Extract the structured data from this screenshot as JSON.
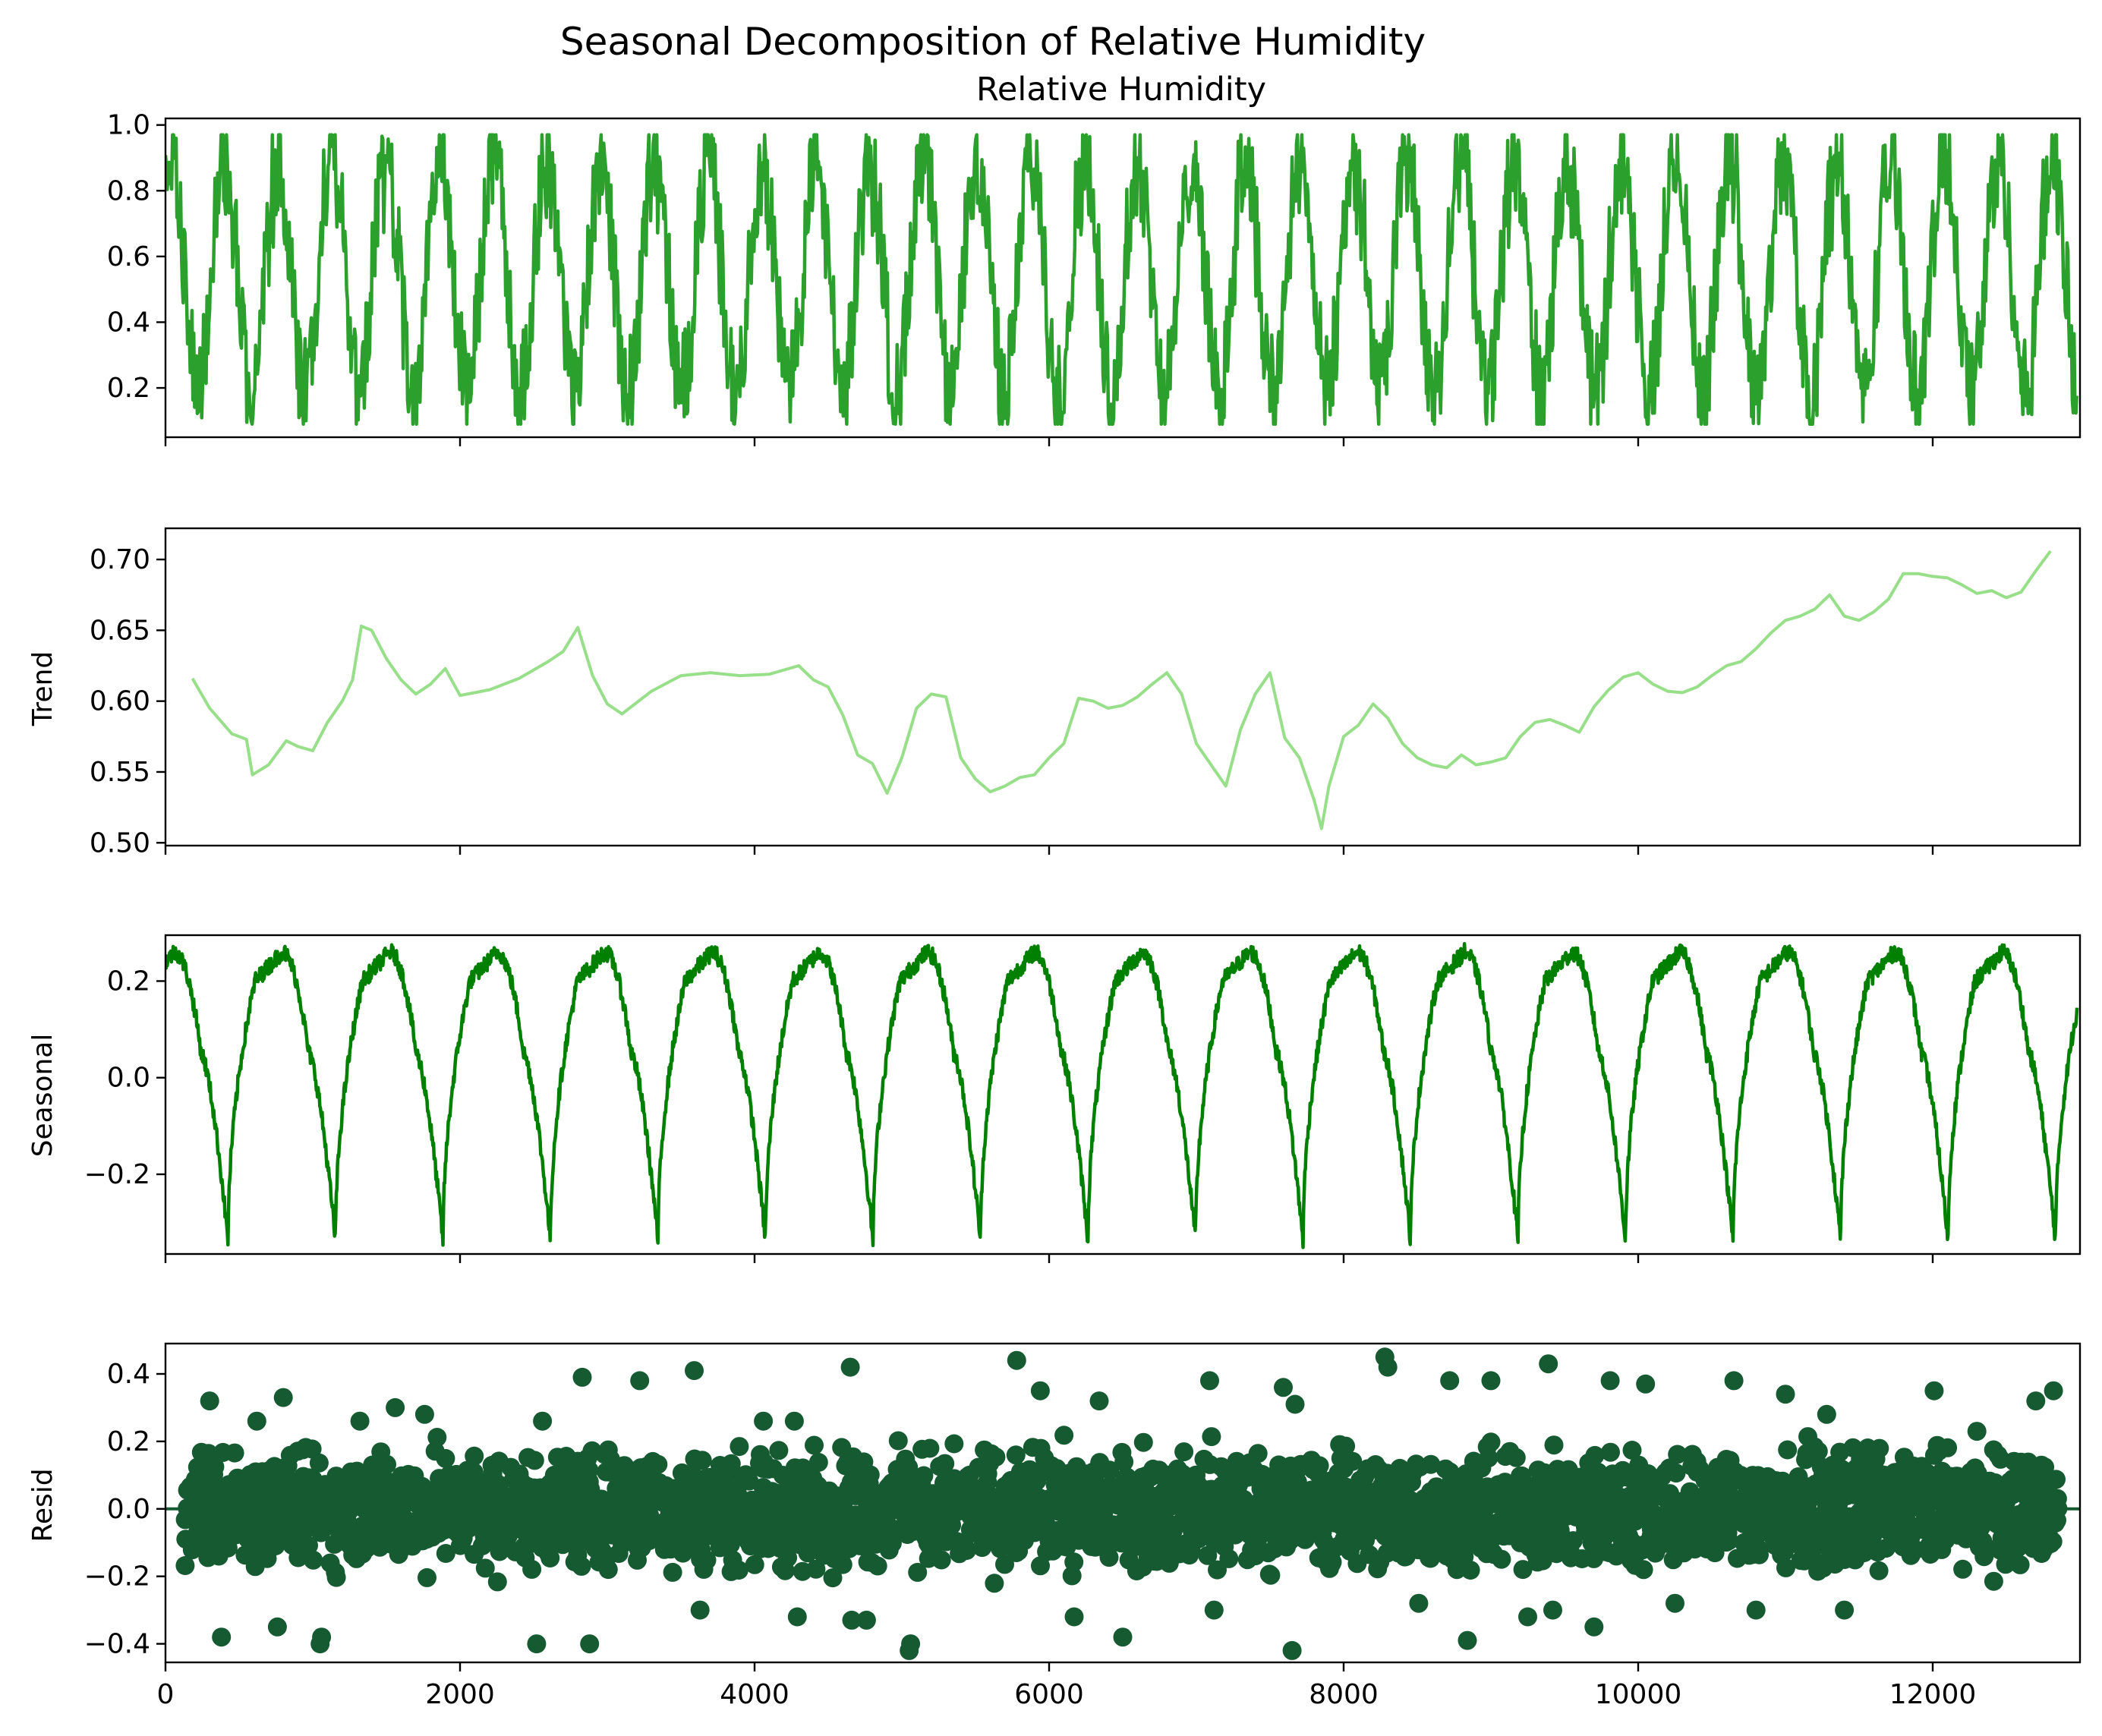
{
  "figure": {
    "title": "Seasonal Decomposition of Relative Humidity"
  },
  "chart_data": [
    {
      "type": "line",
      "title": "Relative Humidity",
      "xlabel": "",
      "ylabel": "",
      "xlim": [
        0,
        13000
      ],
      "ylim": [
        0.05,
        1.02
      ],
      "yticks": [
        0.2,
        0.4,
        0.6,
        0.8,
        1.0
      ],
      "ytick_labels": [
        "0.2",
        "0.4",
        "0.6",
        "0.8",
        "1.0"
      ],
      "xticks": [
        0,
        2000,
        4000,
        6000,
        8000,
        10000,
        12000
      ],
      "xtick_labels": [],
      "color": "#2ca02c",
      "pattern": {
        "x_start": 0,
        "x_end": 12980,
        "period": 365,
        "high_range": [
          0.83,
          0.97
        ],
        "low_range": [
          0.09,
          0.3
        ],
        "noise": 0.16
      },
      "grid": false
    },
    {
      "type": "line",
      "title": "",
      "xlabel": "",
      "ylabel": "Trend",
      "xlim": [
        0,
        13000
      ],
      "ylim": [
        0.498,
        0.722
      ],
      "yticks": [
        0.5,
        0.55,
        0.6,
        0.65,
        0.7
      ],
      "ytick_labels": [
        "0.50",
        "0.55",
        "0.60",
        "0.65",
        "0.70"
      ],
      "xticks": [
        0,
        2000,
        4000,
        6000,
        8000,
        10000,
        12000
      ],
      "xtick_labels": [],
      "color": "#98df8a",
      "x": [
        183,
        300,
        450,
        550,
        590,
        700,
        820,
        900,
        1000,
        1100,
        1200,
        1270,
        1330,
        1400,
        1500,
        1600,
        1700,
        1800,
        1900,
        2000,
        2200,
        2400,
        2600,
        2700,
        2800,
        2900,
        3000,
        3100,
        3300,
        3500,
        3700,
        3900,
        4100,
        4300,
        4400,
        4500,
        4600,
        4700,
        4800,
        4900,
        5000,
        5100,
        5200,
        5300,
        5400,
        5500,
        5600,
        5700,
        5800,
        5900,
        6000,
        6100,
        6200,
        6300,
        6400,
        6500,
        6600,
        6700,
        6800,
        6900,
        7000,
        7100,
        7200,
        7300,
        7400,
        7500,
        7600,
        7700,
        7800,
        7850,
        7900,
        8000,
        8100,
        8200,
        8300,
        8400,
        8500,
        8600,
        8700,
        8800,
        8900,
        9000,
        9100,
        9200,
        9300,
        9400,
        9500,
        9600,
        9700,
        9800,
        9900,
        10000,
        10100,
        10200,
        10300,
        10400,
        10500,
        10600,
        10700,
        10800,
        10900,
        11000,
        11100,
        11200,
        11300,
        11400,
        11500,
        11600,
        11700,
        11800,
        11900,
        12000,
        12100,
        12200,
        12300,
        12400,
        12500,
        12600,
        12700,
        12800
      ],
      "y": [
        0.616,
        0.595,
        0.577,
        0.573,
        0.548,
        0.555,
        0.572,
        0.568,
        0.565,
        0.585,
        0.6,
        0.615,
        0.653,
        0.65,
        0.63,
        0.615,
        0.605,
        0.612,
        0.623,
        0.604,
        0.608,
        0.616,
        0.628,
        0.635,
        0.652,
        0.618,
        0.598,
        0.591,
        0.607,
        0.618,
        0.62,
        0.618,
        0.619,
        0.625,
        0.615,
        0.61,
        0.59,
        0.562,
        0.556,
        0.535,
        0.56,
        0.595,
        0.605,
        0.603,
        0.56,
        0.545,
        0.536,
        0.54,
        0.546,
        0.548,
        0.56,
        0.57,
        0.602,
        0.6,
        0.595,
        0.597,
        0.603,
        0.612,
        0.62,
        0.605,
        0.57,
        0.555,
        0.54,
        0.58,
        0.605,
        0.62,
        0.574,
        0.56,
        0.53,
        0.51,
        0.54,
        0.575,
        0.583,
        0.598,
        0.588,
        0.57,
        0.56,
        0.555,
        0.553,
        0.562,
        0.555,
        0.557,
        0.56,
        0.575,
        0.585,
        0.587,
        0.583,
        0.578,
        0.596,
        0.608,
        0.617,
        0.62,
        0.612,
        0.607,
        0.606,
        0.61,
        0.618,
        0.625,
        0.628,
        0.637,
        0.648,
        0.657,
        0.66,
        0.665,
        0.675,
        0.66,
        0.657,
        0.663,
        0.672,
        0.69,
        0.69,
        0.688,
        0.687,
        0.682,
        0.676,
        0.678,
        0.673,
        0.677,
        0.692,
        0.706
      ],
      "grid": false
    },
    {
      "type": "line",
      "title": "",
      "xlabel": "",
      "ylabel": "Seasonal",
      "xlim": [
        0,
        13000
      ],
      "ylim": [
        -0.365,
        0.295
      ],
      "yticks": [
        -0.2,
        0.0,
        0.2
      ],
      "ytick_labels": [
        "−0.2",
        "0.0",
        "0.2"
      ],
      "xticks": [
        0,
        2000,
        4000,
        6000,
        8000,
        10000,
        12000
      ],
      "xtick_labels": [],
      "color": "#008000",
      "pattern": {
        "x_start": 0,
        "x_end": 12980,
        "period": 730,
        "max": 0.26,
        "min": -0.34,
        "x_first_peak": 60,
        "x_first_min": 240
      },
      "grid": false
    },
    {
      "type": "scatter",
      "title": "",
      "xlabel": "",
      "ylabel": "Resid",
      "xlim": [
        0,
        13000
      ],
      "ylim": [
        -0.455,
        0.49
      ],
      "yticks": [
        -0.4,
        -0.2,
        0.0,
        0.2,
        0.4
      ],
      "ytick_labels": [
        "−0.4",
        "−0.2",
        "0.0",
        "0.2",
        "0.4"
      ],
      "xticks": [
        0,
        2000,
        4000,
        6000,
        8000,
        10000,
        12000
      ],
      "xtick_labels": [
        "0",
        "2000",
        "4000",
        "6000",
        "8000",
        "10000",
        "12000"
      ],
      "color": "#165a32",
      "baseline": 0,
      "pattern": {
        "x_start": 130,
        "x_end": 12850,
        "typical_range": [
          -0.24,
          0.24
        ]
      },
      "outliers": {
        "x": [
          300,
          380,
          620,
          760,
          800,
          1050,
          1060,
          1320,
          1560,
          1760,
          2520,
          2560,
          2830,
          2880,
          3220,
          3590,
          3630,
          4060,
          4270,
          4290,
          4650,
          4660,
          4760,
          5050,
          5060,
          5780,
          5940,
          6170,
          6340,
          6500,
          7090,
          7120,
          7590,
          7650,
          7670,
          8280,
          8300,
          8510,
          8720,
          8840,
          9000,
          9250,
          9390,
          9420,
          9700,
          9810,
          10050,
          10250,
          10650,
          10800,
          11000,
          11280,
          11400,
          12010,
          12300,
          12700,
          12820
        ],
        "y": [
          0.32,
          -0.38,
          0.26,
          -0.35,
          0.33,
          -0.4,
          -0.38,
          0.26,
          0.3,
          0.28,
          -0.4,
          0.26,
          0.39,
          -0.4,
          0.38,
          0.41,
          -0.3,
          0.26,
          0.26,
          -0.32,
          0.42,
          -0.33,
          -0.33,
          -0.42,
          -0.4,
          0.44,
          0.35,
          -0.32,
          0.32,
          -0.38,
          0.38,
          -0.3,
          0.36,
          -0.42,
          0.31,
          0.45,
          0.42,
          -0.28,
          0.38,
          -0.39,
          0.38,
          -0.32,
          0.43,
          -0.3,
          -0.35,
          0.38,
          0.37,
          -0.28,
          0.38,
          -0.3,
          0.34,
          0.28,
          -0.3,
          0.35,
          0.23,
          0.32,
          0.35
        ]
      },
      "grid": false
    }
  ]
}
